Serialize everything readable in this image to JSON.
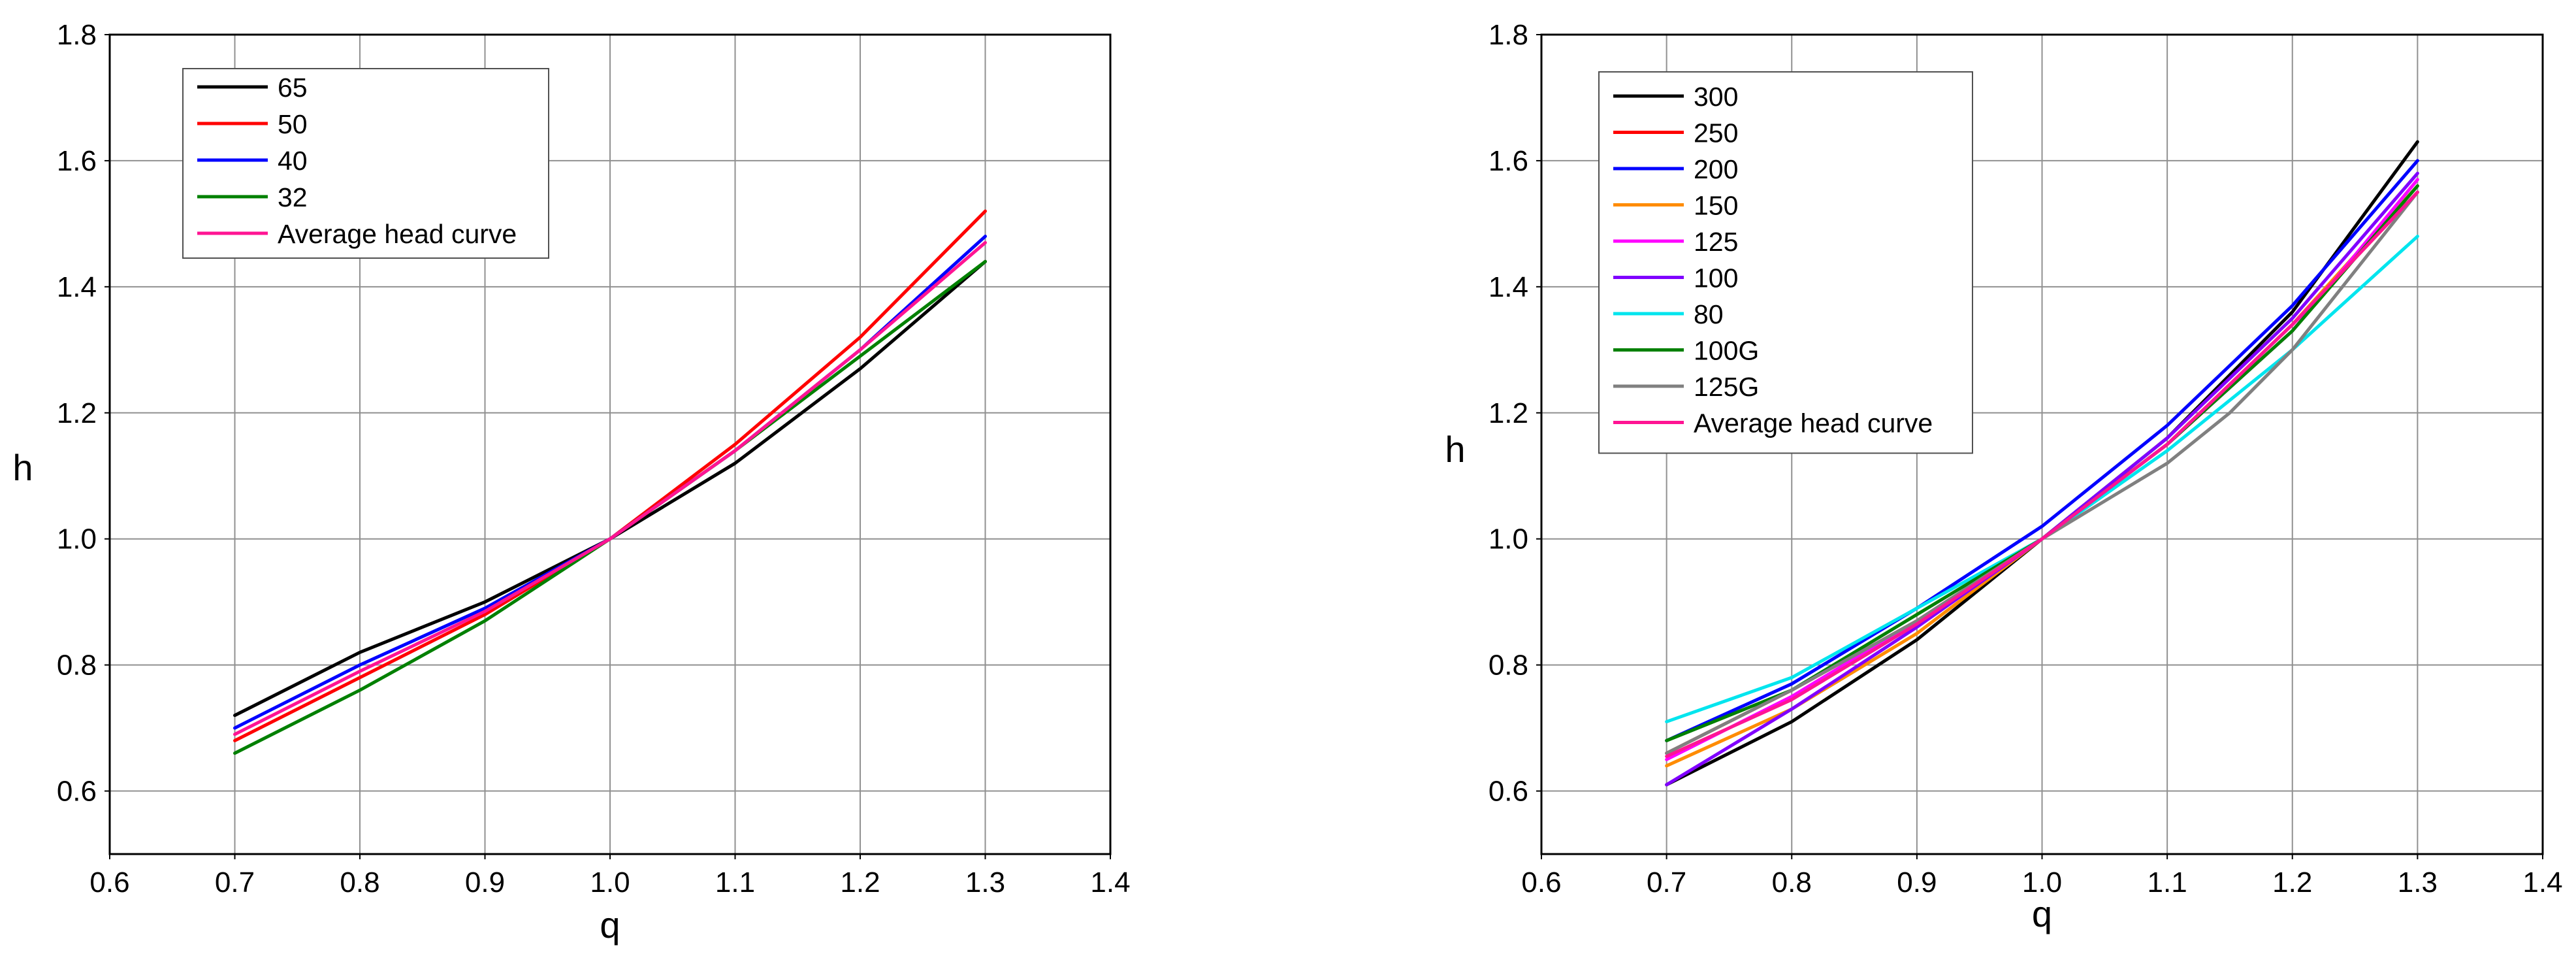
{
  "chart_data": [
    {
      "type": "line",
      "title": "",
      "xlabel": "q",
      "ylabel": "h",
      "xlim": [
        0.6,
        1.4
      ],
      "ylim": [
        0.5,
        1.8
      ],
      "xticks": [
        "0.6",
        "0.7",
        "0.8",
        "0.9",
        "1.0",
        "1.1",
        "1.2",
        "1.3",
        "1.4"
      ],
      "yticks": [
        "0.6",
        "0.8",
        "1.0",
        "1.2",
        "1.4",
        "1.6",
        "1.8"
      ],
      "grid": true,
      "legend_position": "top-left",
      "x": [
        0.7,
        0.8,
        0.9,
        1.0,
        1.1,
        1.2,
        1.3
      ],
      "series": [
        {
          "name": "65",
          "color": "#000000",
          "values": [
            0.72,
            0.82,
            0.9,
            1.0,
            1.12,
            1.27,
            1.44
          ]
        },
        {
          "name": "50",
          "color": "#ff0000",
          "values": [
            0.68,
            0.78,
            0.88,
            1.0,
            1.15,
            1.32,
            1.52
          ]
        },
        {
          "name": "40",
          "color": "#0000ff",
          "values": [
            0.7,
            0.8,
            0.89,
            1.0,
            1.14,
            1.3,
            1.48
          ]
        },
        {
          "name": "32",
          "color": "#008000",
          "values": [
            0.66,
            0.76,
            0.87,
            1.0,
            1.14,
            1.29,
            1.44
          ]
        },
        {
          "name": "Average head curve",
          "color": "#ff1493",
          "values": [
            0.69,
            0.79,
            0.885,
            1.0,
            1.14,
            1.3,
            1.47
          ]
        }
      ]
    },
    {
      "type": "line",
      "title": "",
      "xlabel": "q",
      "ylabel": "h",
      "xlim": [
        0.6,
        1.4
      ],
      "ylim": [
        0.5,
        1.8
      ],
      "xticks": [
        "0.6",
        "0.7",
        "0.8",
        "0.9",
        "1.0",
        "1.1",
        "1.2",
        "1.3",
        "1.4"
      ],
      "yticks": [
        "0.6",
        "0.8",
        "1.0",
        "1.2",
        "1.4",
        "1.6",
        "1.8"
      ],
      "grid": true,
      "legend_position": "top-left",
      "x": [
        0.7,
        0.8,
        0.9,
        1.0,
        1.1,
        1.2,
        1.3
      ],
      "series": [
        {
          "name": "300",
          "color": "#000000",
          "x": [
            0.7,
            0.8,
            0.9,
            1.0,
            1.1,
            1.2,
            1.3
          ],
          "values": [
            0.61,
            0.71,
            0.84,
            1.0,
            1.16,
            1.36,
            1.63
          ]
        },
        {
          "name": "250",
          "color": "#ff0000",
          "x": [
            0.7,
            0.8,
            0.9,
            1.0,
            1.1,
            1.2,
            1.3
          ],
          "values": [
            0.66,
            0.76,
            0.87,
            1.0,
            1.15,
            1.34,
            1.55
          ]
        },
        {
          "name": "200",
          "color": "#0000ff",
          "x": [
            0.7,
            0.8,
            0.9,
            1.0,
            1.1,
            1.2,
            1.3
          ],
          "values": [
            0.68,
            0.77,
            0.89,
            1.02,
            1.18,
            1.37,
            1.6
          ]
        },
        {
          "name": "150",
          "color": "#ff8c00",
          "x": [
            0.7,
            0.8,
            0.9,
            1.0,
            1.1,
            1.2,
            1.3
          ],
          "values": [
            0.64,
            0.73,
            0.85,
            1.0,
            1.15,
            1.34,
            1.56
          ]
        },
        {
          "name": "125",
          "color": "#ff00ff",
          "x": [
            0.7,
            0.8,
            0.9,
            1.0,
            1.1,
            1.2,
            1.3
          ],
          "values": [
            0.65,
            0.75,
            0.87,
            1.0,
            1.15,
            1.33,
            1.57
          ]
        },
        {
          "name": "100",
          "color": "#8000ff",
          "x": [
            0.7,
            0.8,
            0.9,
            1.0,
            1.1,
            1.2,
            1.3
          ],
          "values": [
            0.61,
            0.73,
            0.86,
            1.0,
            1.16,
            1.35,
            1.58
          ]
        },
        {
          "name": "80",
          "color": "#00e5ee",
          "x": [
            0.7,
            0.8,
            0.9,
            1.0,
            1.1,
            1.2,
            1.3
          ],
          "values": [
            0.71,
            0.78,
            0.89,
            1.0,
            1.14,
            1.3,
            1.48
          ]
        },
        {
          "name": "100G",
          "color": "#008000",
          "x": [
            0.7,
            0.8,
            0.9,
            1.0,
            1.1,
            1.2,
            1.3
          ],
          "values": [
            0.68,
            0.76,
            0.88,
            1.0,
            1.15,
            1.33,
            1.56
          ]
        },
        {
          "name": "125G",
          "color": "#808080",
          "x": [
            0.7,
            0.8,
            0.9,
            1.0,
            1.1,
            1.15,
            1.2,
            1.3
          ],
          "values": [
            0.66,
            0.76,
            0.87,
            1.0,
            1.12,
            1.2,
            1.3,
            1.55
          ]
        },
        {
          "name": "Average head curve",
          "color": "#ff1493",
          "x": [
            0.7,
            0.8,
            0.9,
            1.0,
            1.1,
            1.2,
            1.3
          ],
          "values": [
            0.655,
            0.745,
            0.865,
            1.0,
            1.15,
            1.34,
            1.55
          ]
        }
      ]
    }
  ]
}
